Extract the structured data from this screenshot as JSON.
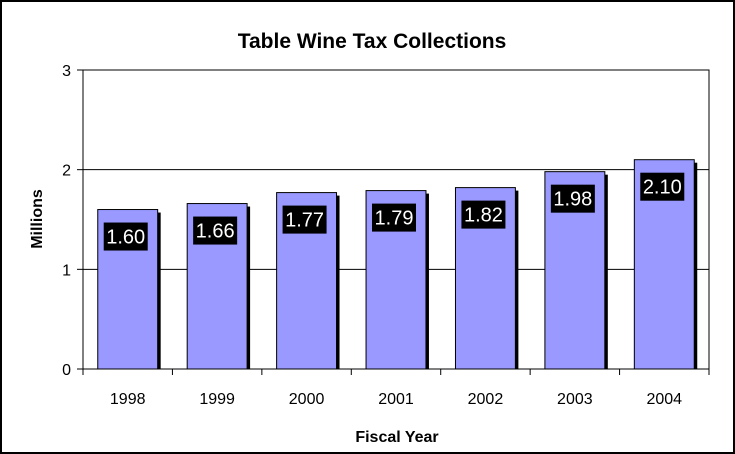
{
  "chart_data": {
    "type": "bar",
    "title": "Table Wine Tax Collections",
    "xlabel": "Fiscal Year",
    "ylabel": "Millions",
    "categories": [
      "1998",
      "1999",
      "2000",
      "2001",
      "2002",
      "2003",
      "2004"
    ],
    "values": [
      1.6,
      1.66,
      1.77,
      1.79,
      1.82,
      1.98,
      2.1
    ],
    "data_labels": [
      "1.60",
      "1.66",
      "1.77",
      "1.79",
      "1.82",
      "1.98",
      "2.10"
    ],
    "yticks": [
      "0",
      "1",
      "2",
      "3"
    ],
    "ylim": [
      0,
      3
    ],
    "grid": true,
    "legend": "none",
    "colors": {
      "bar": "#9999ff",
      "label_bg": "#000000",
      "label_text": "#ffffff"
    }
  }
}
